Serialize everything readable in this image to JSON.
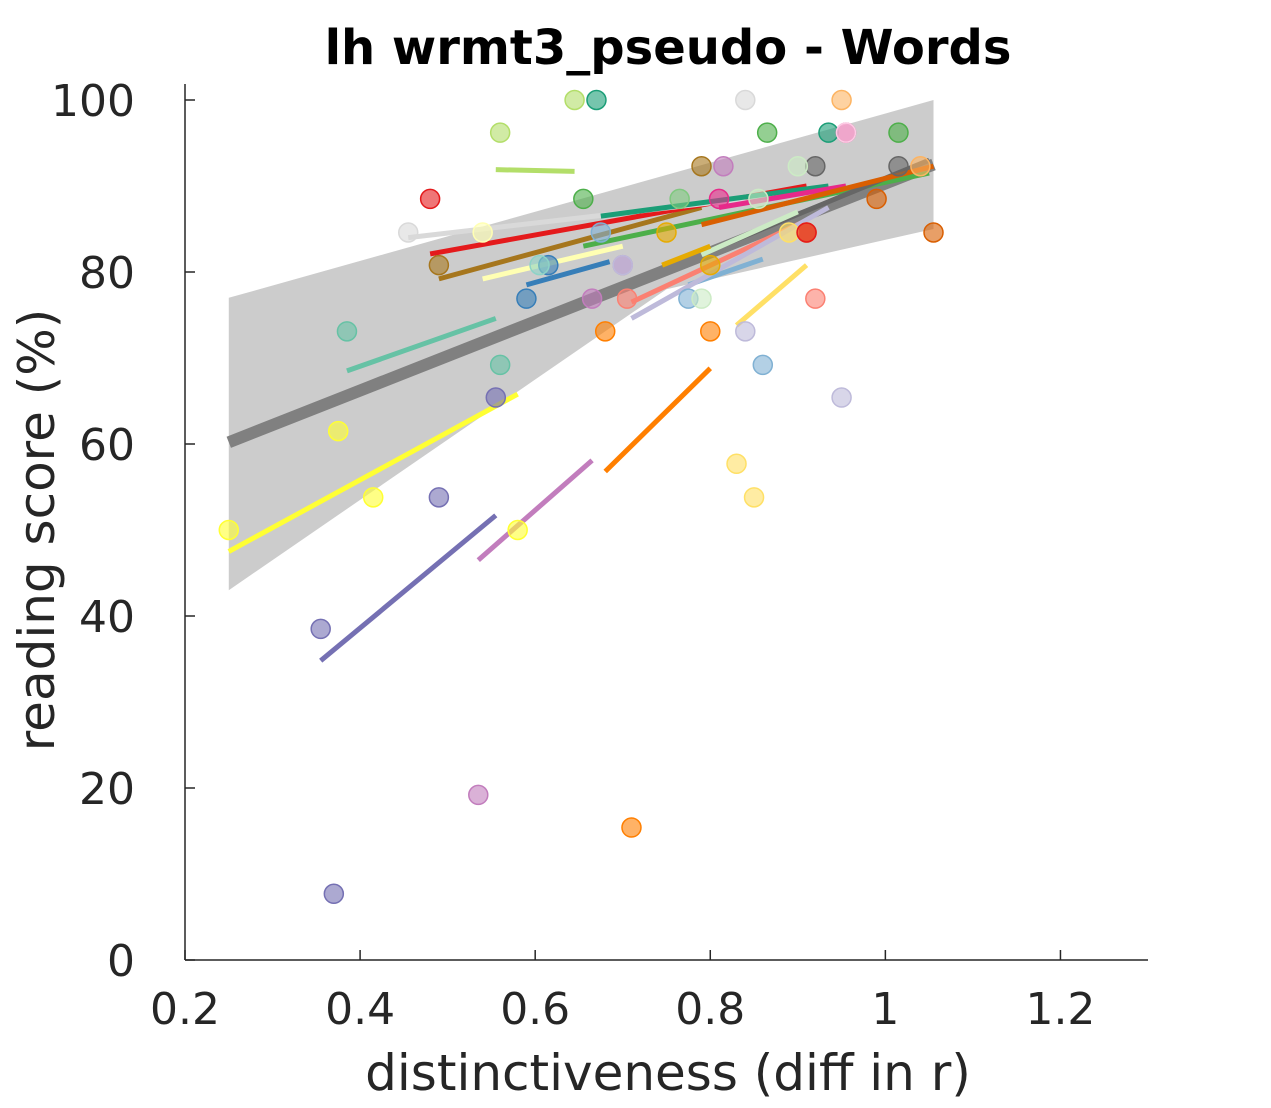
{
  "chart_data": {
    "type": "scatter",
    "title": "lh wrmt3_pseudo - Words",
    "xlabel": "distinctiveness (diff in r)",
    "ylabel": "reading score (%)",
    "xlim": [
      0.2,
      1.3
    ],
    "ylim": [
      0,
      100
    ],
    "xticks": [
      "0.2",
      "0.4",
      "0.6",
      "0.8",
      "1",
      "1.2"
    ],
    "xtick_values": [
      0.2,
      0.4,
      0.6,
      0.8,
      1.0,
      1.2
    ],
    "yticks": [
      "0",
      "20",
      "40",
      "60",
      "80",
      "100"
    ],
    "ytick_values": [
      0,
      20,
      40,
      60,
      80,
      100
    ],
    "grid": false,
    "legend": "none",
    "overall_fit": {
      "color": "#808080",
      "line": [
        [
          0.25,
          60.2
        ],
        [
          1.055,
          92.5
        ]
      ],
      "ci_upper": [
        [
          0.25,
          77.0
        ],
        [
          1.055,
          100.0
        ]
      ],
      "ci_lower": [
        [
          0.25,
          43.0
        ],
        [
          0.75,
          78.0
        ],
        [
          1.055,
          85.0
        ]
      ]
    },
    "series": [
      {
        "color": "#ffff33",
        "points": [
          [
            0.25,
            50
          ],
          [
            0.375,
            61.5
          ],
          [
            0.415,
            53.8
          ],
          [
            0.58,
            50
          ]
        ],
        "fit": [
          [
            0.25,
            47.5
          ],
          [
            0.58,
            65.8
          ]
        ]
      },
      {
        "color": "#7570b3",
        "points": [
          [
            0.355,
            38.5
          ],
          [
            0.37,
            7.7
          ],
          [
            0.49,
            53.8
          ],
          [
            0.555,
            65.4
          ]
        ],
        "fit": [
          [
            0.355,
            34.8
          ],
          [
            0.555,
            51.7
          ]
        ]
      },
      {
        "color": "#ff7f00",
        "points": [
          [
            0.68,
            73.1
          ],
          [
            0.71,
            15.4
          ],
          [
            0.8,
            73.1
          ],
          [
            0.91,
            84.6
          ]
        ],
        "fit": [
          [
            0.68,
            56.8
          ],
          [
            0.8,
            68.8
          ]
        ]
      },
      {
        "color": "#c27dbd",
        "points": [
          [
            0.535,
            19.2
          ],
          [
            0.665,
            76.9
          ],
          [
            0.7,
            80.8
          ],
          [
            0.815,
            92.3
          ]
        ],
        "fit": [
          [
            0.535,
            46.5
          ],
          [
            0.665,
            58.1
          ]
        ]
      },
      {
        "color": "#ffe066",
        "points": [
          [
            0.83,
            57.7
          ],
          [
            0.85,
            53.8
          ],
          [
            0.89,
            84.6
          ]
        ],
        "fit": [
          [
            0.83,
            73.8
          ],
          [
            0.91,
            80.8
          ]
        ]
      },
      {
        "color": "#66c2a5",
        "points": [
          [
            0.385,
            73.1
          ],
          [
            0.56,
            69.2
          ]
        ],
        "fit": [
          [
            0.385,
            68.5
          ],
          [
            0.555,
            74.6
          ]
        ]
      },
      {
        "color": "#a6761d",
        "points": [
          [
            0.49,
            80.8
          ],
          [
            0.79,
            92.3
          ]
        ],
        "fit": [
          [
            0.49,
            79.2
          ],
          [
            0.79,
            87.5
          ]
        ]
      },
      {
        "color": "#e41a1c",
        "points": [
          [
            0.48,
            88.5
          ],
          [
            0.91,
            84.6
          ]
        ],
        "fit": [
          [
            0.48,
            82.1
          ],
          [
            0.91,
            90.0
          ]
        ]
      },
      {
        "color": "#d9d9d9",
        "points": [
          [
            0.455,
            84.6
          ],
          [
            0.84,
            100
          ]
        ],
        "fit": [
          [
            0.455,
            84.0
          ],
          [
            0.84,
            88.5
          ]
        ]
      },
      {
        "color": "#b3de69",
        "points": [
          [
            0.56,
            96.2
          ],
          [
            0.645,
            100
          ]
        ],
        "fit": [
          [
            0.555,
            91.9
          ],
          [
            0.645,
            91.7
          ]
        ]
      },
      {
        "color": "#377eb8",
        "points": [
          [
            0.59,
            76.9
          ],
          [
            0.615,
            80.8
          ]
        ],
        "fit": [
          [
            0.59,
            78.5
          ],
          [
            0.685,
            81.2
          ]
        ]
      },
      {
        "color": "#1b9e77",
        "points": [
          [
            0.67,
            100
          ],
          [
            0.935,
            96.2
          ]
        ],
        "fit": [
          [
            0.675,
            86.5
          ],
          [
            0.935,
            90.0
          ]
        ]
      },
      {
        "color": "#4daf4a",
        "points": [
          [
            0.655,
            88.5
          ],
          [
            0.865,
            96.2
          ],
          [
            1.015,
            96.2
          ]
        ],
        "fit": [
          [
            0.655,
            83.0
          ],
          [
            1.05,
            91.5
          ]
        ]
      },
      {
        "color": "#fb8072",
        "points": [
          [
            0.705,
            76.9
          ],
          [
            0.92,
            76.9
          ]
        ],
        "fit": [
          [
            0.71,
            76.5
          ],
          [
            0.91,
            86.0
          ]
        ]
      },
      {
        "color": "#80b1d3",
        "points": [
          [
            0.675,
            84.6
          ],
          [
            0.775,
            76.9
          ],
          [
            0.86,
            69.2
          ]
        ],
        "fit": [
          [
            0.775,
            78.5
          ],
          [
            0.86,
            81.5
          ]
        ]
      },
      {
        "color": "#bebada",
        "points": [
          [
            0.7,
            80.8
          ],
          [
            0.84,
            73.1
          ],
          [
            0.95,
            65.4
          ]
        ],
        "fit": [
          [
            0.71,
            74.6
          ],
          [
            0.935,
            87.5
          ]
        ]
      },
      {
        "color": "#666666",
        "points": [
          [
            0.92,
            92.3
          ],
          [
            1.015,
            92.3
          ]
        ],
        "fit": [
          [
            0.8,
            82.5
          ],
          [
            1.05,
            93.0
          ]
        ]
      },
      {
        "color": "#e7298a",
        "points": [
          [
            0.81,
            88.5
          ],
          [
            0.955,
            96.2
          ]
        ],
        "fit": [
          [
            0.81,
            87.5
          ],
          [
            0.955,
            90.0
          ]
        ]
      },
      {
        "color": "#ccebc5",
        "points": [
          [
            0.79,
            76.9
          ],
          [
            0.855,
            88.5
          ],
          [
            0.9,
            92.3
          ]
        ],
        "fit": [
          [
            0.79,
            82.0
          ],
          [
            0.9,
            87.0
          ]
        ]
      },
      {
        "color": "#e6ab02",
        "points": [
          [
            0.8,
            80.8
          ],
          [
            0.75,
            84.6
          ]
        ],
        "fit": [
          [
            0.745,
            80.8
          ],
          [
            0.8,
            83.0
          ]
        ]
      },
      {
        "color": "#d95f02",
        "points": [
          [
            0.99,
            88.5
          ],
          [
            1.055,
            84.6
          ]
        ],
        "fit": [
          [
            0.79,
            85.5
          ],
          [
            1.055,
            92.3
          ]
        ]
      },
      {
        "color": "#7fc97f",
        "points": [
          [
            0.765,
            88.5
          ]
        ],
        "fit": []
      },
      {
        "color": "#8dd3c7",
        "points": [
          [
            0.605,
            80.8
          ]
        ],
        "fit": []
      },
      {
        "color": "#ffffb3",
        "points": [
          [
            0.54,
            84.6
          ]
        ],
        "fit": [
          [
            0.54,
            79.2
          ],
          [
            0.7,
            83.0
          ]
        ]
      },
      {
        "color": "#fdb462",
        "points": [
          [
            0.95,
            100
          ],
          [
            1.04,
            92.3
          ]
        ],
        "fit": []
      },
      {
        "color": "#fccde5",
        "points": [
          [
            0.955,
            96.2
          ]
        ],
        "fit": []
      }
    ]
  }
}
